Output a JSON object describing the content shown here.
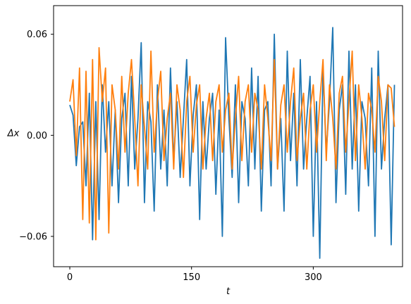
{
  "chart_data": {
    "type": "line",
    "xlabel": "t",
    "ylabel": "Δx",
    "xlim": [
      -20,
      410
    ],
    "ylim": [
      -0.078,
      0.077
    ],
    "xticks": [
      0,
      150,
      300
    ],
    "xtick_labels": [
      "0",
      "150",
      "300"
    ],
    "yticks": [
      -0.06,
      0.0,
      0.06
    ],
    "ytick_labels": [
      "−0.06",
      "0.00",
      "0.06"
    ],
    "grid": false,
    "legend": "none",
    "series": [
      {
        "color": "#1f77b4",
        "x": [
          0,
          4,
          8,
          12,
          16,
          20,
          24,
          28,
          32,
          36,
          40,
          44,
          48,
          52,
          56,
          60,
          64,
          68,
          72,
          76,
          80,
          84,
          88,
          92,
          96,
          100,
          104,
          108,
          112,
          116,
          120,
          124,
          128,
          132,
          136,
          140,
          144,
          148,
          152,
          156,
          160,
          164,
          168,
          172,
          176,
          180,
          184,
          188,
          192,
          196,
          200,
          204,
          208,
          212,
          216,
          220,
          224,
          228,
          232,
          236,
          240,
          244,
          248,
          252,
          256,
          260,
          264,
          268,
          272,
          276,
          280,
          284,
          288,
          292,
          296,
          300,
          304,
          308,
          312,
          316,
          320,
          324,
          328,
          332,
          336,
          340,
          344,
          348,
          352,
          356,
          360,
          364,
          368,
          372,
          376,
          380,
          384,
          388,
          392,
          396,
          400
        ],
        "values": [
          0.018,
          0.012,
          -0.018,
          0.005,
          0.008,
          -0.03,
          0.025,
          -0.062,
          0.02,
          -0.05,
          0.03,
          -0.01,
          0.02,
          -0.03,
          0.015,
          -0.04,
          0.01,
          0.025,
          -0.03,
          0.035,
          -0.02,
          0.01,
          0.055,
          -0.04,
          0.02,
          0.008,
          -0.045,
          0.03,
          -0.02,
          0.015,
          -0.03,
          0.04,
          -0.015,
          0.02,
          -0.025,
          0.01,
          0.045,
          -0.03,
          0.012,
          0.03,
          -0.05,
          0.02,
          -0.02,
          0.01,
          0.025,
          -0.035,
          0.015,
          -0.06,
          0.058,
          0.01,
          -0.025,
          0.03,
          -0.04,
          0.02,
          0.01,
          -0.03,
          0.04,
          -0.02,
          0.035,
          -0.045,
          0.015,
          0.02,
          -0.03,
          0.06,
          -0.02,
          0.01,
          -0.045,
          0.05,
          -0.015,
          0.025,
          -0.03,
          0.045,
          -0.02,
          0.01,
          0.035,
          -0.06,
          0.02,
          -0.073,
          0.04,
          -0.01,
          0.02,
          0.064,
          -0.04,
          0.015,
          0.03,
          -0.035,
          0.05,
          -0.02,
          0.03,
          -0.045,
          0.02,
          0.01,
          -0.03,
          0.04,
          -0.06,
          0.05,
          -0.02,
          0.01,
          0.03,
          -0.065,
          0.03
        ]
      },
      {
        "color": "#ff7f0e",
        "x": [
          0,
          4,
          8,
          12,
          16,
          20,
          24,
          28,
          32,
          36,
          40,
          44,
          48,
          52,
          56,
          60,
          64,
          68,
          72,
          76,
          80,
          84,
          88,
          92,
          96,
          100,
          104,
          108,
          112,
          116,
          120,
          124,
          128,
          132,
          136,
          140,
          144,
          148,
          152,
          156,
          160,
          164,
          168,
          172,
          176,
          180,
          184,
          188,
          192,
          196,
          200,
          204,
          208,
          212,
          216,
          220,
          224,
          228,
          232,
          236,
          240,
          244,
          248,
          252,
          256,
          260,
          264,
          268,
          272,
          276,
          280,
          284,
          288,
          292,
          296,
          300,
          304,
          308,
          312,
          316,
          320,
          324,
          328,
          332,
          336,
          340,
          344,
          348,
          352,
          356,
          360,
          364,
          368,
          372,
          376,
          380,
          384,
          388,
          392,
          396,
          400
        ],
        "values": [
          0.02,
          0.033,
          -0.012,
          0.04,
          -0.05,
          0.038,
          -0.052,
          0.045,
          -0.062,
          0.052,
          0.02,
          0.04,
          -0.058,
          0.03,
          0.015,
          -0.02,
          0.035,
          -0.01,
          0.025,
          0.045,
          0.01,
          -0.03,
          0.03,
          0.005,
          -0.02,
          0.05,
          -0.01,
          0.02,
          0.038,
          -0.015,
          0.01,
          0.025,
          -0.02,
          0.03,
          0.015,
          -0.025,
          0.02,
          0.035,
          -0.01,
          0.018,
          0.03,
          -0.02,
          0.01,
          0.025,
          -0.015,
          0.02,
          0.03,
          -0.01,
          0.015,
          0.025,
          -0.02,
          0.01,
          0.035,
          -0.015,
          0.02,
          0.03,
          -0.01,
          0.025,
          0.015,
          -0.02,
          0.03,
          0.01,
          -0.015,
          0.045,
          -0.02,
          0.018,
          0.03,
          -0.01,
          0.02,
          0.04,
          -0.015,
          0.01,
          0.025,
          -0.02,
          0.015,
          0.03,
          -0.01,
          0.02,
          0.045,
          -0.015,
          0.03,
          0.01,
          -0.02,
          0.025,
          0.035,
          -0.01,
          0.02,
          0.05,
          -0.015,
          0.03,
          0.01,
          -0.02,
          0.025,
          0.015,
          -0.01,
          0.035,
          0.02,
          -0.015,
          0.03,
          0.028,
          0.005
        ]
      }
    ]
  }
}
